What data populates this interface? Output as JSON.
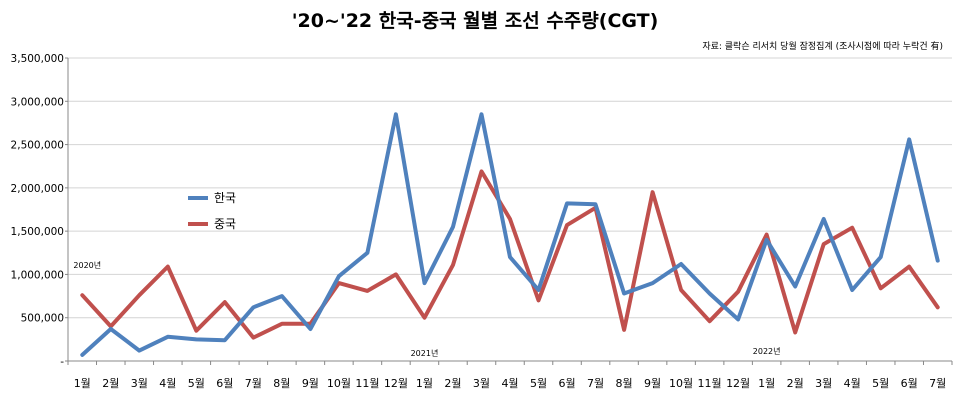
{
  "chart_data": {
    "type": "line",
    "title": "'20~'22 한국-중국 월별 조선 수주량(CGT)",
    "source_note": "자료: 클락슨 리서치 당월 잠정집계 (조사시점에 따라 누락건 有)",
    "categories": [
      "1월",
      "2월",
      "3월",
      "4월",
      "5월",
      "6월",
      "7월",
      "8월",
      "9월",
      "10월",
      "11월",
      "12월",
      "1월",
      "2월",
      "3월",
      "4월",
      "5월",
      "6월",
      "7월",
      "8월",
      "9월",
      "10월",
      "11월",
      "12월",
      "1월",
      "2월",
      "3월",
      "4월",
      "5월",
      "6월",
      "7월"
    ],
    "year_labels": [
      {
        "label": "2020년",
        "index": 0
      },
      {
        "label": "2021년",
        "index": 12
      },
      {
        "label": "2022년",
        "index": 24
      }
    ],
    "series": [
      {
        "name": "한국",
        "color": "#4F81BD",
        "values": [
          70000,
          370000,
          120000,
          280000,
          250000,
          240000,
          620000,
          750000,
          370000,
          980000,
          1250000,
          2850000,
          900000,
          1550000,
          2850000,
          1200000,
          820000,
          1820000,
          1810000,
          780000,
          900000,
          1120000,
          780000,
          480000,
          1400000,
          860000,
          1640000,
          820000,
          1200000,
          2560000,
          1160000
        ]
      },
      {
        "name": "중국",
        "color": "#C0504D",
        "values": [
          760000,
          400000,
          760000,
          1090000,
          350000,
          680000,
          270000,
          430000,
          430000,
          900000,
          810000,
          1000000,
          500000,
          1110000,
          2190000,
          1640000,
          700000,
          1570000,
          1770000,
          360000,
          1950000,
          820000,
          460000,
          800000,
          1460000,
          330000,
          1350000,
          1540000,
          840000,
          1090000,
          620000
        ]
      }
    ],
    "y_ticks": [
      "-",
      "500,000",
      "1,000,000",
      "1,500,000",
      "2,000,000",
      "2,500,000",
      "3,000,000",
      "3,500,000"
    ],
    "ylim": [
      0,
      3500000
    ],
    "grid": true,
    "legend_position": "left-middle"
  }
}
